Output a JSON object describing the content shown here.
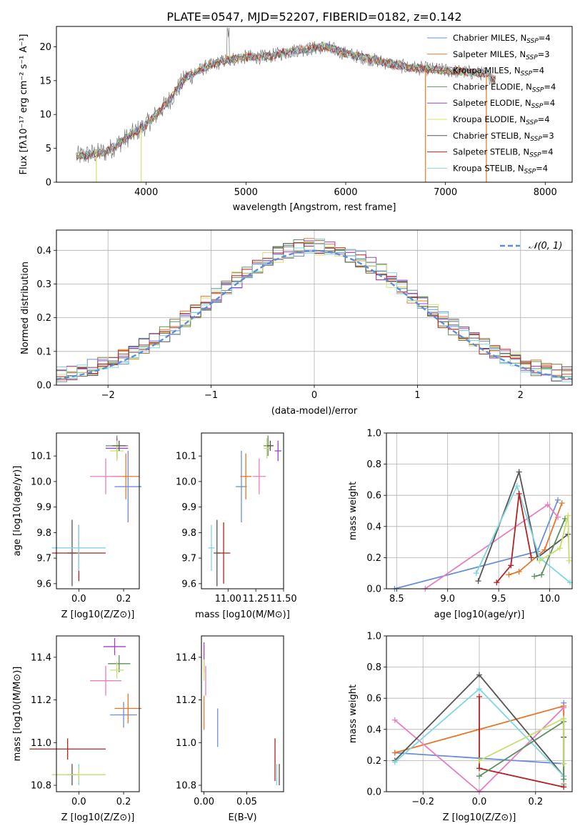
{
  "figure": {
    "title": "PLATE=0547, MJD=52207, FIBERID=0182, z=0.142"
  },
  "palette": {
    "chabrier_miles": "#6a8fd9",
    "salpeter_miles": "#e6762a",
    "kroupa_miles": "#8c6d3a",
    "chabrier_elodie": "#5f8f5f",
    "salpeter_elodie": "#a040c0",
    "kroupa_elodie": "#d9de6e",
    "chabrier_stelib": "#555555",
    "salpeter_stelib": "#b22222",
    "kroupa_stelib": "#7fd6e0",
    "extra": "#e57fbf",
    "lime": "#c6e06a"
  },
  "chart_data": [
    {
      "id": "spectrum",
      "type": "line",
      "title": "PLATE=0547, MJD=52207, FIBERID=0182, z=0.142",
      "xlabel": "wavelength [Angstrom, rest frame]",
      "ylabel": "Flux [fλ10⁻¹⁷ erg cm⁻² s⁻¹ A⁻¹]",
      "xlim": [
        3100,
        8270
      ],
      "ylim": [
        0,
        23
      ],
      "xticks": [
        4000,
        5000,
        6000,
        7000,
        8000
      ],
      "yticks": [
        0,
        5,
        10,
        15,
        20
      ],
      "grid": false,
      "legend_position": "top-right",
      "continuum": [
        [
          3300,
          3.8
        ],
        [
          3600,
          4.5
        ],
        [
          3800,
          6.5
        ],
        [
          4000,
          8.5
        ],
        [
          4200,
          11.5
        ],
        [
          4400,
          15.5
        ],
        [
          4600,
          17.0
        ],
        [
          4800,
          18.0
        ],
        [
          5000,
          18.5
        ],
        [
          5200,
          18.5
        ],
        [
          5500,
          19.5
        ],
        [
          5800,
          20.0
        ],
        [
          6000,
          19.0
        ],
        [
          6300,
          18.0
        ],
        [
          6600,
          17.0
        ],
        [
          7000,
          16.5
        ],
        [
          7400,
          16.0
        ],
        [
          7500,
          15.0
        ]
      ],
      "series": [
        {
          "name": "Chabrier MILES, N_SSP=4",
          "color": "#6a8fd9"
        },
        {
          "name": "Salpeter MILES, N_SSP=3",
          "color": "#e6762a"
        },
        {
          "name": "Kroupa MILES, N_SSP=4",
          "color": "#8c6d3a"
        },
        {
          "name": "Chabrier ELODIE, N_SSP=4",
          "color": "#5f8f5f"
        },
        {
          "name": "Salpeter ELODIE, N_SSP=4",
          "color": "#a040c0"
        },
        {
          "name": "Kroupa ELODIE, N_SSP=4",
          "color": "#d9de6e"
        },
        {
          "name": "Chabrier STELIB, N_SSP=3",
          "color": "#555555"
        },
        {
          "name": "Salpeter STELIB, N_SSP=4",
          "color": "#b22222"
        },
        {
          "name": "Kroupa STELIB, N_SSP=4",
          "color": "#7fd6e0"
        }
      ],
      "drop_lines": [
        3500,
        3950,
        6800,
        7410
      ]
    },
    {
      "id": "residuals",
      "type": "area",
      "xlabel": "(data-model)/error",
      "ylabel": "Normed distribution",
      "xlim": [
        -2.5,
        2.5
      ],
      "ylim": [
        0,
        0.46
      ],
      "xticks": [
        -2,
        -1,
        0,
        1,
        2
      ],
      "yticks": [
        0.0,
        0.1,
        0.2,
        0.3,
        0.4
      ],
      "grid": true,
      "legend_position": "top-right",
      "legend": "N(0,1)",
      "gaussian_color": "#5b8ed6"
    },
    {
      "id": "age_vs_Z",
      "type": "scatter",
      "xlabel": "Z [log10(Z/Z⊙)]",
      "ylabel": "age  [log10(age/yr)]",
      "xlim": [
        -0.1,
        0.27
      ],
      "ylim": [
        9.58,
        10.19
      ],
      "xticks": [
        0.0,
        0.2
      ],
      "yticks": [
        9.6,
        9.7,
        9.8,
        9.9,
        10.0,
        10.1
      ],
      "grid": false,
      "points": [
        {
          "x": 0.22,
          "y": 9.98,
          "xerr": 0.06,
          "yerr": 0.14,
          "color": "#6a8fd9"
        },
        {
          "x": 0.21,
          "y": 10.02,
          "xerr": 0.06,
          "yerr": 0.09,
          "color": "#e6762a"
        },
        {
          "x": 0.17,
          "y": 10.14,
          "xerr": 0.05,
          "yerr": 0.04,
          "color": "#5f8f5f"
        },
        {
          "x": 0.17,
          "y": 10.13,
          "xerr": 0.05,
          "yerr": 0.04,
          "color": "#a040c0"
        },
        {
          "x": 0.17,
          "y": 10.12,
          "xerr": 0.03,
          "yerr": 0.04,
          "color": "#c6e06a"
        },
        {
          "x": 0.18,
          "y": 10.14,
          "xerr": 0.03,
          "yerr": 0.02,
          "color": "#555555"
        },
        {
          "x": 0.12,
          "y": 10.02,
          "xerr": 0.07,
          "yerr": 0.07,
          "color": "#e57fbf"
        },
        {
          "x": -0.03,
          "y": 9.72,
          "xerr": 0.02,
          "yerr": 0.13,
          "color": "#555555"
        },
        {
          "x": 0.0,
          "y": 9.72,
          "xerr": 0.12,
          "yerr": 0.11,
          "color": "#b22222"
        },
        {
          "x": 0.0,
          "y": 9.74,
          "xerr": 0.12,
          "yerr": 0.09,
          "color": "#7fd6e0"
        }
      ]
    },
    {
      "id": "age_vs_mass",
      "type": "scatter",
      "xlabel": "mass [log10(M/M⊙)]",
      "ylabel": "",
      "xlim": [
        10.76,
        11.5
      ],
      "ylim": [
        9.58,
        10.19
      ],
      "xticks": [
        11.0,
        11.25,
        11.5
      ],
      "yticks": [
        9.6,
        9.7,
        9.8,
        9.9,
        10.0,
        10.1
      ],
      "grid": false,
      "points": [
        {
          "x": 11.12,
          "y": 9.98,
          "xerr": 0.05,
          "yerr": 0.14,
          "color": "#6a8fd9"
        },
        {
          "x": 11.16,
          "y": 10.02,
          "xerr": 0.05,
          "yerr": 0.09,
          "color": "#e6762a"
        },
        {
          "x": 11.36,
          "y": 10.14,
          "xerr": 0.04,
          "yerr": 0.04,
          "color": "#5f8f5f"
        },
        {
          "x": 11.45,
          "y": 10.12,
          "xerr": 0.03,
          "yerr": 0.04,
          "color": "#a040c0"
        },
        {
          "x": 11.35,
          "y": 10.13,
          "xerr": 0.03,
          "yerr": 0.04,
          "color": "#c6e06a"
        },
        {
          "x": 11.38,
          "y": 10.14,
          "xerr": 0.03,
          "yerr": 0.02,
          "color": "#555555"
        },
        {
          "x": 11.28,
          "y": 10.02,
          "xerr": 0.06,
          "yerr": 0.07,
          "color": "#e57fbf"
        },
        {
          "x": 10.9,
          "y": 9.72,
          "xerr": 0.03,
          "yerr": 0.13,
          "color": "#555555"
        },
        {
          "x": 10.96,
          "y": 9.72,
          "xerr": 0.06,
          "yerr": 0.12,
          "color": "#b22222"
        },
        {
          "x": 10.85,
          "y": 9.74,
          "xerr": 0.03,
          "yerr": 0.09,
          "color": "#7fd6e0"
        }
      ]
    },
    {
      "id": "massweight_vs_age",
      "type": "line",
      "xlabel": "age  [log10(age/yr)]",
      "ylabel": "mass weight",
      "xlim": [
        8.4,
        10.22
      ],
      "ylim": [
        0,
        1.0
      ],
      "xticks": [
        8.5,
        9.0,
        9.5,
        10.0
      ],
      "yticks": [
        0.0,
        0.2,
        0.4,
        0.6,
        0.8,
        1.0
      ],
      "grid": true,
      "series": [
        {
          "color": "#6a8fd9",
          "x": [
            8.48,
            9.88,
            10.08
          ],
          "y": [
            0.0,
            0.24,
            0.57
          ]
        },
        {
          "color": "#e6762a",
          "x": [
            9.6,
            9.7,
            9.95,
            10.12
          ],
          "y": [
            0.09,
            0.11,
            0.25,
            0.55
          ]
        },
        {
          "color": "#e57fbf",
          "x": [
            8.78,
            9.98,
            10.08
          ],
          "y": [
            0.0,
            0.54,
            0.46
          ]
        },
        {
          "color": "#555555",
          "x": [
            9.3,
            9.7,
            9.88,
            10.18
          ],
          "y": [
            0.05,
            0.75,
            0.2,
            0.35
          ]
        },
        {
          "color": "#7fd6e0",
          "x": [
            9.28,
            9.68,
            9.9,
            10.2
          ],
          "y": [
            0.1,
            0.66,
            0.2,
            0.04
          ]
        },
        {
          "color": "#b22222",
          "x": [
            9.48,
            9.62,
            9.7,
            9.82
          ],
          "y": [
            0.04,
            0.15,
            0.61,
            0.2
          ]
        },
        {
          "color": "#5f8f5f",
          "x": [
            9.85,
            9.92,
            10.15
          ],
          "y": [
            0.08,
            0.09,
            0.45
          ]
        },
        {
          "color": "#c6e06a",
          "x": [
            9.9,
            10.1,
            10.18,
            10.19
          ],
          "y": [
            0.18,
            0.26,
            0.47,
            0.18
          ]
        }
      ]
    },
    {
      "id": "mass_vs_Z",
      "type": "scatter",
      "xlabel": "Z [log10(Z/Z⊙)]",
      "ylabel": "mass [log10(M/M⊙)]",
      "xlim": [
        -0.1,
        0.27
      ],
      "ylim": [
        10.77,
        11.5
      ],
      "xticks": [
        0.0,
        0.2
      ],
      "yticks": [
        10.8,
        11.0,
        11.2,
        11.4
      ],
      "grid": false,
      "points": [
        {
          "x": 0.2,
          "y": 11.13,
          "xerr": 0.06,
          "yerr": 0.06,
          "color": "#6a8fd9"
        },
        {
          "x": 0.22,
          "y": 11.16,
          "xerr": 0.06,
          "yerr": 0.07,
          "color": "#e6762a"
        },
        {
          "x": 0.18,
          "y": 11.37,
          "xerr": 0.05,
          "yerr": 0.04,
          "color": "#5f8f5f"
        },
        {
          "x": 0.16,
          "y": 11.45,
          "xerr": 0.05,
          "yerr": 0.04,
          "color": "#a040c0"
        },
        {
          "x": 0.17,
          "y": 11.34,
          "xerr": 0.03,
          "yerr": 0.04,
          "color": "#c6e06a"
        },
        {
          "x": 0.12,
          "y": 11.29,
          "xerr": 0.07,
          "yerr": 0.07,
          "color": "#e57fbf"
        },
        {
          "x": -0.03,
          "y": 10.85,
          "xerr": 0.02,
          "yerr": 0.05,
          "color": "#555555"
        },
        {
          "x": -0.05,
          "y": 10.97,
          "xerr": 0.17,
          "yerr": 0.05,
          "color": "#b22222"
        },
        {
          "x": 0.0,
          "y": 10.85,
          "xerr": 0.12,
          "yerr": 0.05,
          "color": "#7fd6e0"
        },
        {
          "x": 0.0,
          "y": 10.85,
          "xerr": 0.12,
          "yerr": 0.03,
          "color": "#c6e06a"
        }
      ]
    },
    {
      "id": "mass_vs_ebv",
      "type": "scatter",
      "xlabel": "E(B-V)",
      "ylabel": "",
      "xlim": [
        -0.003,
        0.093
      ],
      "ylim": [
        10.77,
        11.5
      ],
      "xticks": [
        0.0,
        0.05
      ],
      "yticks": [
        10.8,
        11.0,
        11.2,
        11.4
      ],
      "grid": false,
      "points": [
        {
          "x": 0.016,
          "y": 11.07,
          "xerr": 0,
          "yerr": 0.09,
          "color": "#6a8fd9"
        },
        {
          "x": 0.0,
          "y": 11.14,
          "xerr": 0,
          "yerr": 0.08,
          "color": "#e6762a"
        },
        {
          "x": 0.0,
          "y": 11.4,
          "xerr": 0,
          "yerr": 0.07,
          "color": "#a040c0"
        },
        {
          "x": 0.002,
          "y": 11.29,
          "xerr": 0,
          "yerr": 0.07,
          "color": "#e57fbf"
        },
        {
          "x": 0.0,
          "y": 11.34,
          "xerr": 0,
          "yerr": 0.05,
          "color": "#c6e06a"
        },
        {
          "x": 0.083,
          "y": 10.92,
          "xerr": 0,
          "yerr": 0.1,
          "color": "#b22222"
        },
        {
          "x": 0.088,
          "y": 10.85,
          "xerr": 0,
          "yerr": 0.05,
          "color": "#555555"
        },
        {
          "x": 0.085,
          "y": 10.85,
          "xerr": 0,
          "yerr": 0.05,
          "color": "#7fd6e0"
        }
      ]
    },
    {
      "id": "massweight_vs_Z",
      "type": "line",
      "xlabel": "Z [log10(Z/Z⊙)]",
      "ylabel": "mass weight",
      "xlim": [
        -0.33,
        0.33
      ],
      "ylim": [
        0,
        1.0
      ],
      "xticks": [
        -0.2,
        0.0,
        0.2
      ],
      "yticks": [
        0.0,
        0.2,
        0.4,
        0.6,
        0.8,
        1.0
      ],
      "grid": true,
      "series": [
        {
          "color": "#6a8fd9",
          "x": [
            -0.3,
            0.3,
            0.3
          ],
          "y": [
            0.25,
            0.18,
            0.57
          ]
        },
        {
          "color": "#e6762a",
          "x": [
            -0.3,
            0.0,
            0.3,
            0.3
          ],
          "y": [
            0.25,
            0.4,
            0.55,
            0.05
          ]
        },
        {
          "color": "#e57fbf",
          "x": [
            -0.3,
            0.0,
            0.3
          ],
          "y": [
            0.46,
            0.0,
            0.54
          ]
        },
        {
          "color": "#555555",
          "x": [
            -0.3,
            0.0,
            0.3,
            0.3
          ],
          "y": [
            0.2,
            0.75,
            0.1,
            0.35
          ]
        },
        {
          "color": "#7fd6e0",
          "x": [
            -0.3,
            0.0,
            0.3,
            0.3
          ],
          "y": [
            0.19,
            0.66,
            0.1,
            0.04
          ]
        },
        {
          "color": "#b22222",
          "x": [
            0.0,
            0.0,
            0.3
          ],
          "y": [
            0.61,
            0.15,
            0.03
          ]
        },
        {
          "color": "#5f8f5f",
          "x": [
            0.0,
            0.3,
            0.3
          ],
          "y": [
            0.1,
            0.45,
            0.08
          ]
        },
        {
          "color": "#c6e06a",
          "x": [
            0.0,
            0.3,
            0.3
          ],
          "y": [
            0.2,
            0.47,
            0.18
          ]
        }
      ]
    }
  ]
}
